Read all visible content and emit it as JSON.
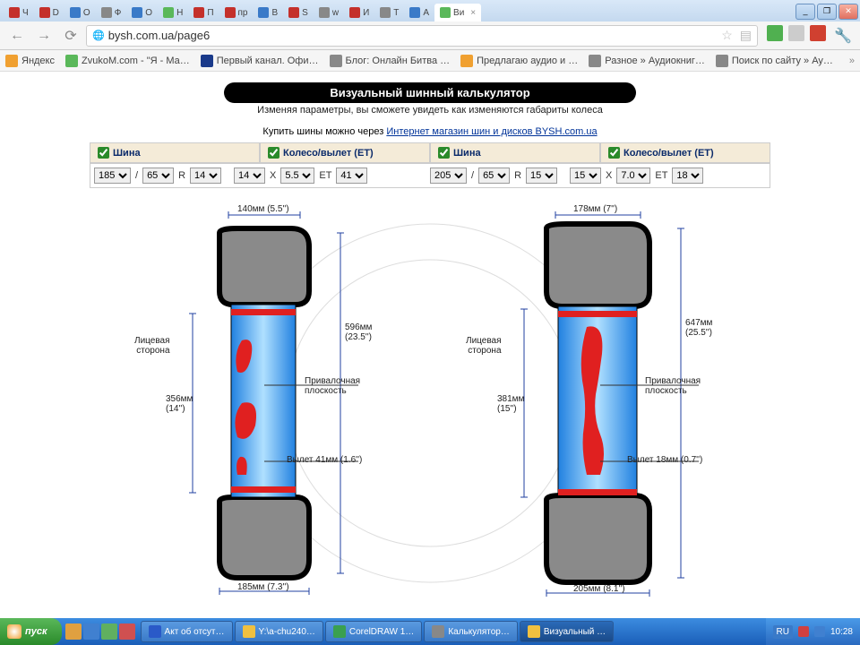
{
  "tabs": [
    {
      "label": "Ч",
      "color": "#c4302b"
    },
    {
      "label": "D",
      "color": "#c4302b"
    },
    {
      "label": "О",
      "color": "#3a7ac8"
    },
    {
      "label": "Ф",
      "color": "#888"
    },
    {
      "label": "О",
      "color": "#3a7ac8"
    },
    {
      "label": "Н",
      "color": "#5ab85a"
    },
    {
      "label": "П",
      "color": "#c4302b"
    },
    {
      "label": "пр",
      "color": "#c4302b"
    },
    {
      "label": "В",
      "color": "#3a7ac8"
    },
    {
      "label": "S",
      "color": "#c4302b"
    },
    {
      "label": "w",
      "color": "#888"
    },
    {
      "label": "И",
      "color": "#c4302b"
    },
    {
      "label": "Т",
      "color": "#888"
    },
    {
      "label": "А",
      "color": "#3a7ac8"
    },
    {
      "label": "Ви",
      "color": "#5ab85a",
      "active": true,
      "close": true
    }
  ],
  "url": "bysh.com.ua/page6",
  "bookmarks": [
    {
      "label": "Яндекс",
      "color": "#f0a030"
    },
    {
      "label": "ZvukoM.com - \"Я - Ма…",
      "color": "#5ab85a"
    },
    {
      "label": "Первый канал. Офи…",
      "color": "#1a3a8a"
    },
    {
      "label": "Блог: Онлайн Битва …",
      "color": "#888"
    },
    {
      "label": "Предлагаю аудио и …",
      "color": "#f0a030"
    },
    {
      "label": "Разное » Аудиокниг…",
      "color": "#888"
    },
    {
      "label": "Поиск по сайту » Ау…",
      "color": "#888"
    }
  ],
  "page": {
    "title": "Визуальный шинный калькулятор",
    "subtitle": "Изменяя параметры, вы сможете увидеть как изменяются габариты колеса",
    "buy_prefix": "Купить шины можно через ",
    "buy_link": "Интернет магазин шин и дисков BYSH.com.ua"
  },
  "headers": {
    "tire": "Шина",
    "wheel": "Колесо/вылет (ET)"
  },
  "left": {
    "width": "185",
    "profile": "65",
    "rim": "14",
    "wheel_d": "14",
    "wheel_w": "5.5",
    "et": "41"
  },
  "right": {
    "width": "205",
    "profile": "65",
    "rim": "15",
    "wheel_d": "15",
    "wheel_w": "7.0",
    "et": "18"
  },
  "labels": {
    "face_side": "Лицевая\nсторона",
    "mounting_plane": "Привалочная\nплоскость",
    "r_label": "R",
    "slash": "/",
    "x_label": "X",
    "et_label": "ET"
  },
  "dims": {
    "left": {
      "top_width": "140мм (5.5'')",
      "bottom_width": "185мм (7.3'')",
      "height": "596мм\n(23.5'')",
      "rim": "356мм\n(14'')",
      "offset": "Вылет 41мм (1.6'')"
    },
    "right": {
      "top_width": "178мм (7'')",
      "bottom_width": "205мм (8.1'')",
      "height": "647мм\n(25.5'')",
      "rim": "381мм\n(15'')",
      "offset": "Вылет 18мм (0.7'')"
    }
  },
  "taskbar": {
    "start": "пуск",
    "items": [
      {
        "label": "Акт об отсут…",
        "icon": "#2a5ac8"
      },
      {
        "label": "Y:\\a-chu240…",
        "icon": "#f0c040"
      },
      {
        "label": "CorelDRAW 1…",
        "icon": "#3aa050"
      },
      {
        "label": "Калькулятор…",
        "icon": "#888"
      },
      {
        "label": "Визуальный …",
        "icon": "#f0c040",
        "active": true
      }
    ],
    "lang": "RU",
    "time": "10:28"
  },
  "colors": {
    "tire_fill": "#8a8a8a",
    "tire_stroke": "#000",
    "rim_blue_light": "#b0e0ff",
    "rim_blue_dark": "#2080e0",
    "red": "#e02020",
    "dim_line": "#2040a0"
  }
}
